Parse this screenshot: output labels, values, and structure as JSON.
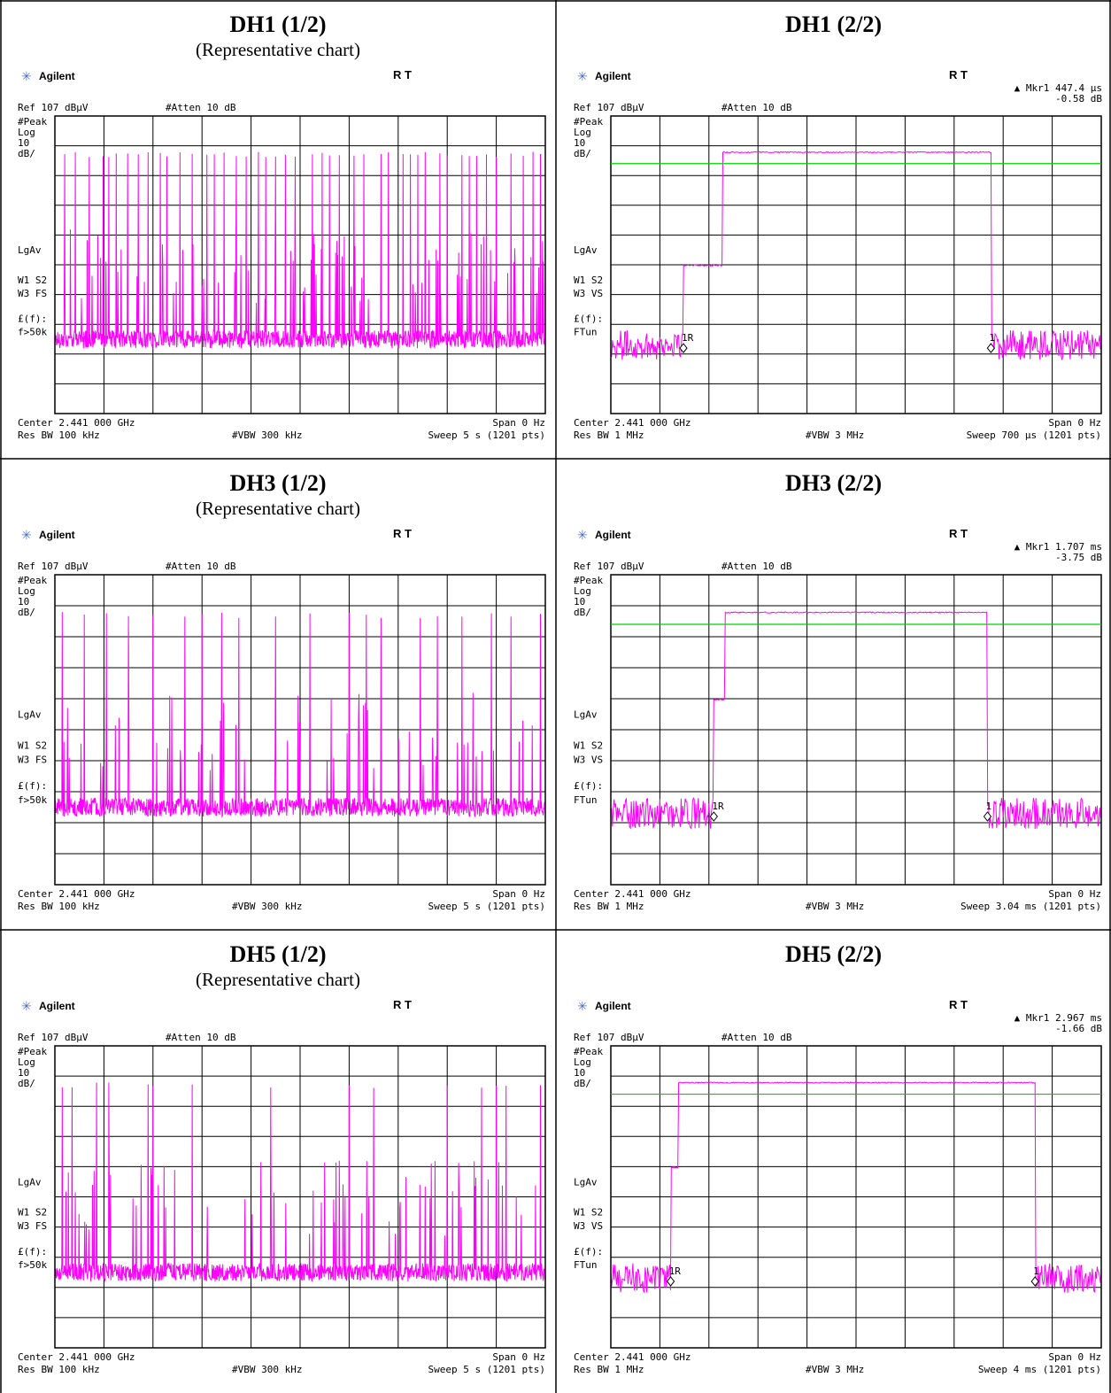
{
  "panels": [
    {
      "id": "p0",
      "title": "DH1 (1/2)",
      "subtitle": "(Representative chart)",
      "kind": "spikes",
      "brand": "Agilent",
      "rt": "R T",
      "ref": "Ref 107 dBμV",
      "atten": "#Atten 10 dB",
      "marker": "",
      "markerDelta": "",
      "left": [
        "#Peak",
        "Log",
        "10",
        "dB/",
        "LgAv",
        "W1 S2",
        "W3 FS",
        "£(f):",
        "f>50k"
      ],
      "center": "Center 2.441 000 GHz",
      "span": "Span 0 Hz",
      "rbw": "Res BW 100 kHz",
      "vbw": "#VBW 300 kHz",
      "sweep": "Sweep 5 s (1201 pts)",
      "spikes": [
        0.02,
        0.042,
        0.07,
        0.098,
        0.11,
        0.125,
        0.148,
        0.17,
        0.19,
        0.215,
        0.228,
        0.255,
        0.28,
        0.31,
        0.325,
        0.345,
        0.37,
        0.39,
        0.415,
        0.43,
        0.45,
        0.47,
        0.49,
        0.525,
        0.545,
        0.56,
        0.58,
        0.61,
        0.63,
        0.665,
        0.68,
        0.71,
        0.725,
        0.74,
        0.755,
        0.785,
        0.8,
        0.83,
        0.845,
        0.86,
        0.88,
        0.9,
        0.93,
        0.955,
        0.975,
        0.99
      ]
    },
    {
      "id": "p1",
      "title": "DH1 (2/2)",
      "subtitle": "",
      "kind": "pulse",
      "brand": "Agilent",
      "rt": "R T",
      "ref": "Ref 107 dBμV",
      "atten": "#Atten 10 dB",
      "marker": "Mkr1  447.4 μs",
      "markerDelta": "-0.58 dB",
      "left": [
        "#Peak",
        "Log",
        "10",
        "dB/",
        "LgAv",
        "W1 S2",
        "W3 VS",
        "£(f):",
        "FTun"
      ],
      "center": "Center 2.441 000 GHz",
      "span": "Span 0 Hz",
      "rbw": "Res BW 1 MHz",
      "vbw": "#VBW 3 MHz",
      "sweep": "Sweep 700 μs (1201 pts)",
      "pulse": {
        "start": 0.148,
        "step": 0.227,
        "end": 0.775,
        "stepLevel": 0.5
      },
      "markers": [
        "1R",
        "1"
      ]
    },
    {
      "id": "p2",
      "title": "DH3 (1/2)",
      "subtitle": "(Representative chart)",
      "kind": "spikes",
      "brand": "Agilent",
      "rt": "R T",
      "ref": "Ref 107 dBμV",
      "atten": "#Atten 10 dB",
      "marker": "",
      "markerDelta": "",
      "left": [
        "#Peak",
        "Log",
        "10",
        "dB/",
        "LgAv",
        "W1 S2",
        "W3 FS",
        "£(f):",
        "f>50k"
      ],
      "center": "Center 2.441 000 GHz",
      "span": "Span 0 Hz",
      "rbw": "Res BW 100 kHz",
      "vbw": "#VBW 300 kHz",
      "sweep": "Sweep 5 s (1201 pts)",
      "spikes": [
        0.015,
        0.06,
        0.105,
        0.15,
        0.2,
        0.265,
        0.3,
        0.34,
        0.375,
        0.45,
        0.52,
        0.6,
        0.635,
        0.665,
        0.745,
        0.78,
        0.83,
        0.89,
        0.93,
        0.99
      ]
    },
    {
      "id": "p3",
      "title": "DH3 (2/2)",
      "subtitle": "",
      "kind": "pulse",
      "brand": "Agilent",
      "rt": "R T",
      "ref": "Ref 107 dBμV",
      "atten": "#Atten 10 dB",
      "marker": "Mkr1  1.707 ms",
      "markerDelta": "-3.75 dB",
      "left": [
        "#Peak",
        "Log",
        "10",
        "dB/",
        "LgAv",
        "W1 S2",
        "W3 VS",
        "£(f):",
        "FTun"
      ],
      "center": "Center 2.441 000 GHz",
      "span": "Span 0 Hz",
      "rbw": "Res BW 1 MHz",
      "vbw": "#VBW 3 MHz",
      "sweep": "Sweep 3.04 ms (1201 pts)",
      "pulse": {
        "start": 0.21,
        "step": 0.232,
        "end": 0.768,
        "stepLevel": 0.4
      },
      "markers": [
        "1R",
        "1"
      ]
    },
    {
      "id": "p4",
      "title": "DH5 (1/2)",
      "subtitle": "(Representative chart)",
      "kind": "spikes",
      "brand": "Agilent",
      "rt": "R T",
      "ref": "Ref 107 dBμV",
      "atten": "#Atten 10 dB",
      "marker": "",
      "markerDelta": "",
      "left": [
        "#Peak",
        "Log",
        "10",
        "dB/",
        "LgAv",
        "W1 S2",
        "W3 FS",
        "£(f):",
        "f>50k"
      ],
      "center": "Center 2.441 000 GHz",
      "span": "Span 0 Hz",
      "rbw": "Res BW 100 kHz",
      "vbw": "#VBW 300 kHz",
      "sweep": "Sweep 5 s (1201 pts)",
      "spikes": [
        0.015,
        0.035,
        0.085,
        0.11,
        0.19,
        0.2,
        0.28,
        0.44,
        0.6,
        0.65,
        0.8,
        0.87,
        0.9,
        0.92,
        0.99
      ]
    },
    {
      "id": "p5",
      "title": "DH5 (2/2)",
      "subtitle": "",
      "kind": "pulse",
      "brand": "Agilent",
      "rt": "R T",
      "ref": "Ref 107 dBμV",
      "atten": "#Atten 10 dB",
      "marker": "Mkr1  2.967 ms",
      "markerDelta": "-1.66 dB",
      "left": [
        "#Peak",
        "Log",
        "10",
        "dB/",
        "LgAv",
        "W1 S2",
        "W3 VS",
        "£(f):",
        "FTun"
      ],
      "center": "Center 2.441 000 GHz",
      "span": "Span 0 Hz",
      "rbw": "Res BW 1 MHz",
      "vbw": "#VBW 3 MHz",
      "sweep": "Sweep 4 ms (1201 pts)",
      "pulse": {
        "start": 0.122,
        "step": 0.138,
        "end": 0.865,
        "stepLevel": 0.4
      },
      "markers": [
        "1R",
        "1"
      ]
    }
  ],
  "chart_data": [
    {
      "type": "line",
      "title": "DH1 (1/2)",
      "xlabel": "Center 2.441 000 GHz",
      "span": "Span 0 Hz",
      "ylabel": "10 dB/",
      "ref": "Ref 107 dBμV"
    },
    {
      "type": "line",
      "title": "DH1 (2/2)",
      "marker": {
        "delta_time": "447.4 μs",
        "delta_level": "-0.58 dB"
      }
    },
    {
      "type": "line",
      "title": "DH3 (1/2)",
      "xlabel": "Center 2.441 000 GHz",
      "span": "Span 0 Hz",
      "ylabel": "10 dB/",
      "ref": "Ref 107 dBμV"
    },
    {
      "type": "line",
      "title": "DH3 (2/2)",
      "marker": {
        "delta_time": "1.707 ms",
        "delta_level": "-3.75 dB"
      }
    },
    {
      "type": "line",
      "title": "DH5 (1/2)",
      "xlabel": "Center 2.441 000 GHz",
      "span": "Span 0 Hz",
      "ylabel": "10 dB/",
      "ref": "Ref 107 dBμV"
    },
    {
      "type": "line",
      "title": "DH5 (2/2)",
      "marker": {
        "delta_time": "2.967 ms",
        "delta_level": "-1.66 dB"
      }
    }
  ]
}
